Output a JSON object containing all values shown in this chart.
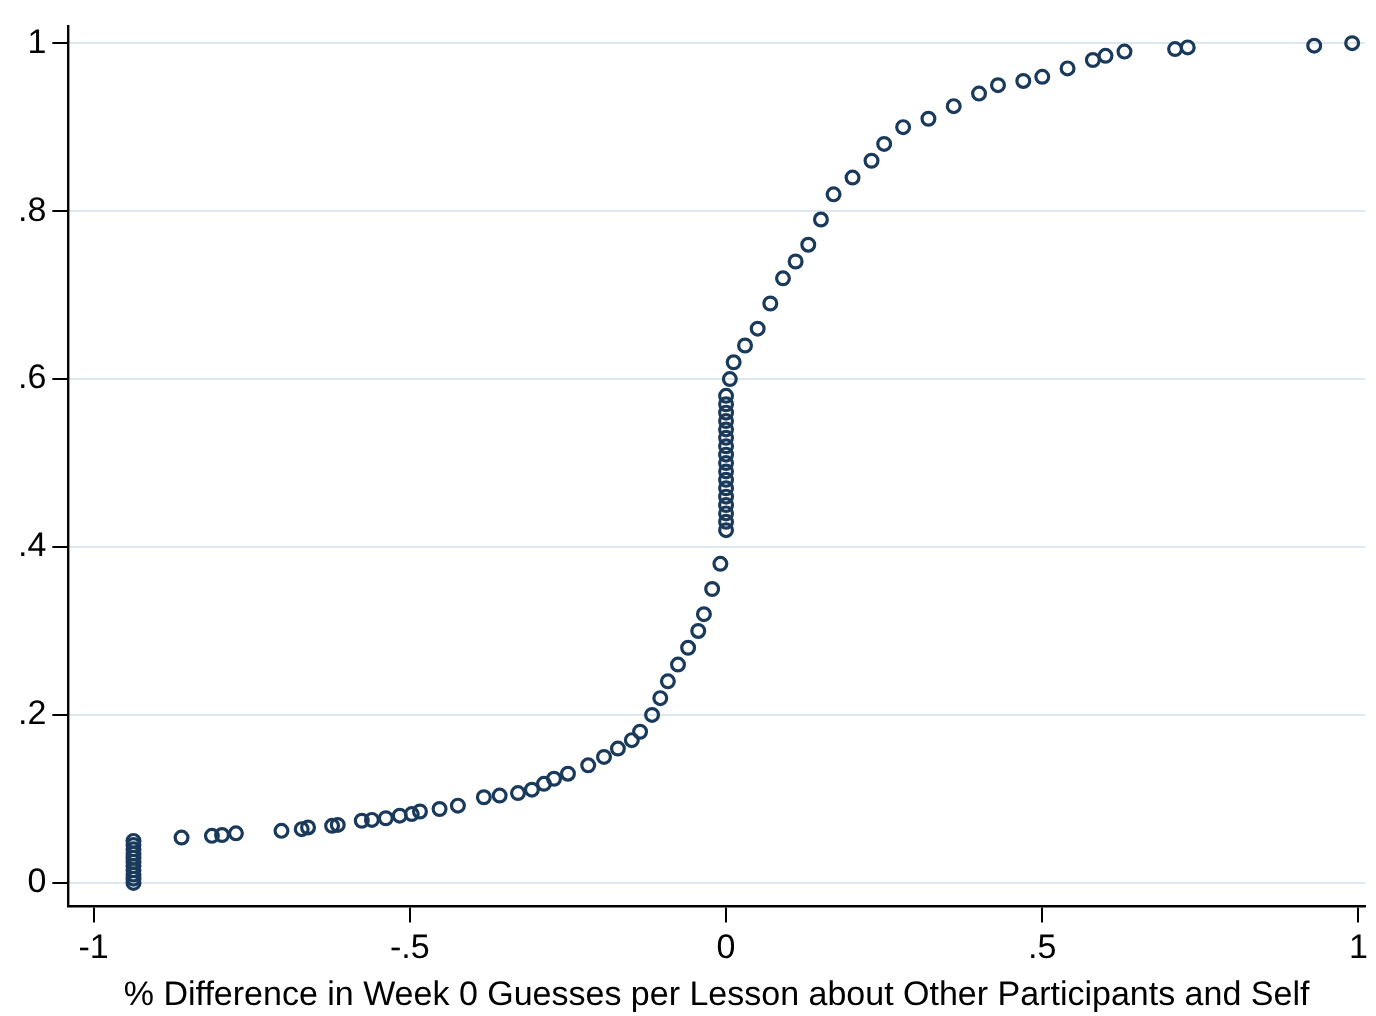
{
  "chart_data": {
    "type": "scatter",
    "xlabel": "% Difference in Week 0 Guesses per Lesson about Other Participants and Self",
    "x": [
      -0.937,
      -0.937,
      -0.937,
      -0.937,
      -0.937,
      -0.937,
      -0.937,
      -0.937,
      -0.937,
      -0.937,
      -0.937,
      -0.861,
      -0.813,
      -0.797,
      -0.775,
      -0.703,
      -0.671,
      -0.661,
      -0.623,
      -0.614,
      -0.576,
      -0.56,
      -0.538,
      -0.516,
      -0.497,
      -0.484,
      -0.453,
      -0.424,
      -0.383,
      -0.358,
      -0.329,
      -0.307,
      -0.288,
      -0.272,
      -0.25,
      -0.218,
      -0.193,
      -0.171,
      -0.149,
      -0.136,
      -0.117,
      -0.104,
      -0.092,
      -0.076,
      -0.06,
      -0.044,
      -0.035,
      -0.022,
      -0.009,
      0,
      0,
      0,
      0,
      0,
      0,
      0,
      0,
      0,
      0,
      0,
      0,
      0,
      0,
      0,
      0,
      0,
      0.006,
      0.012,
      0.03,
      0.05,
      0.07,
      0.09,
      0.11,
      0.13,
      0.15,
      0.17,
      0.2,
      0.23,
      0.25,
      0.28,
      0.32,
      0.36,
      0.4,
      0.43,
      0.47,
      0.5,
      0.54,
      0.58,
      0.6,
      0.63,
      0.71,
      0.73,
      0.93,
      0.99
    ],
    "values": [
      0,
      0.005,
      0.01,
      0.015,
      0.02,
      0.025,
      0.03,
      0.035,
      0.04,
      0.045,
      0.05,
      0.054,
      0.056,
      0.057,
      0.059,
      0.062,
      0.064,
      0.066,
      0.068,
      0.069,
      0.074,
      0.075,
      0.077,
      0.08,
      0.082,
      0.085,
      0.088,
      0.092,
      0.102,
      0.104,
      0.107,
      0.111,
      0.118,
      0.124,
      0.13,
      0.14,
      0.15,
      0.16,
      0.17,
      0.18,
      0.2,
      0.22,
      0.24,
      0.26,
      0.28,
      0.3,
      0.32,
      0.35,
      0.38,
      0.42,
      0.43,
      0.44,
      0.45,
      0.46,
      0.47,
      0.48,
      0.49,
      0.5,
      0.51,
      0.52,
      0.53,
      0.54,
      0.55,
      0.56,
      0.57,
      0.58,
      0.6,
      0.62,
      0.64,
      0.66,
      0.69,
      0.72,
      0.74,
      0.76,
      0.79,
      0.82,
      0.84,
      0.86,
      0.88,
      0.9,
      0.91,
      0.925,
      0.94,
      0.95,
      0.955,
      0.96,
      0.97,
      0.98,
      0.985,
      0.99,
      0.993,
      0.995,
      0.997,
      1
    ],
    "color": "#1a3a5c",
    "marker": "circle",
    "xlim": [
      -1.04,
      1.01
    ],
    "xticks": [
      -1,
      {
        "value": -0.5,
        "label": "-.5"
      },
      0,
      {
        "value": 0.5,
        "label": ".5"
      },
      1
    ],
    "ylim": [
      -0.028,
      1.02
    ],
    "yticks": [
      0,
      {
        "value": 0.2,
        "label": ".2"
      },
      {
        "value": 0.4,
        "label": ".4"
      },
      {
        "value": 0.6,
        "label": ".6"
      },
      {
        "value": 0.8,
        "label": ".8"
      },
      1
    ],
    "grid": "y"
  }
}
